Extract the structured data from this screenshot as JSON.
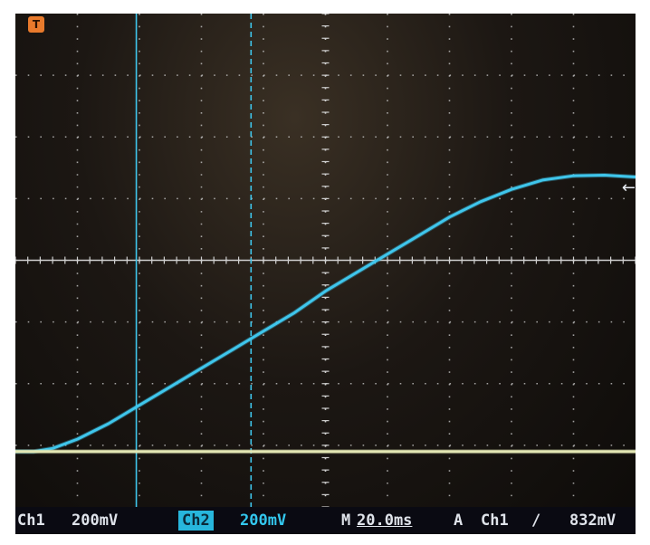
{
  "chart_data": {
    "type": "line",
    "grid": true,
    "x_divisions": 10,
    "y_divisions": 8,
    "series": [
      {
        "channel": "Ch1",
        "color": "#3fc6ec",
        "x_div": [
          0,
          0.3,
          0.6,
          1.0,
          1.5,
          2.0,
          2.5,
          3.0,
          3.5,
          4.0,
          4.5,
          5.0,
          5.5,
          6.0,
          6.5,
          7.0,
          7.5,
          8.0,
          8.5,
          9.0,
          9.5,
          10.0
        ],
        "y_div": [
          -3.1,
          -3.1,
          -3.05,
          -2.9,
          -2.65,
          -2.35,
          -2.05,
          -1.75,
          -1.45,
          -1.15,
          -0.85,
          -0.5,
          -0.2,
          0.1,
          0.4,
          0.7,
          0.95,
          1.15,
          1.3,
          1.37,
          1.38,
          1.35
        ]
      },
      {
        "channel": "Ch2",
        "color": "#e3e7b4",
        "x_div": [
          0,
          10
        ],
        "y_div": [
          -3.1,
          -3.1
        ]
      }
    ],
    "cursors": [
      {
        "style": "solid",
        "x_div": 1.95
      },
      {
        "style": "dashed",
        "x_div": 3.8
      }
    ]
  },
  "status": {
    "ch1_label": "Ch1",
    "ch1_scale": "200mV",
    "ch2_label": "Ch2",
    "ch2_scale": "200mV",
    "time_prefix": "M",
    "time_scale": "20.0ms",
    "trigger_mode": "A",
    "trigger_source": "Ch1",
    "trigger_slope": "∕",
    "trigger_level": "832mV"
  },
  "markers": {
    "trigger_icon": "T",
    "level_icon": "←"
  },
  "colors": {
    "ch1": "#3fc6ec",
    "ch2": "#e3e7b4",
    "grid": "#cfcfcf",
    "trigger_marker": "#e87a2c"
  }
}
